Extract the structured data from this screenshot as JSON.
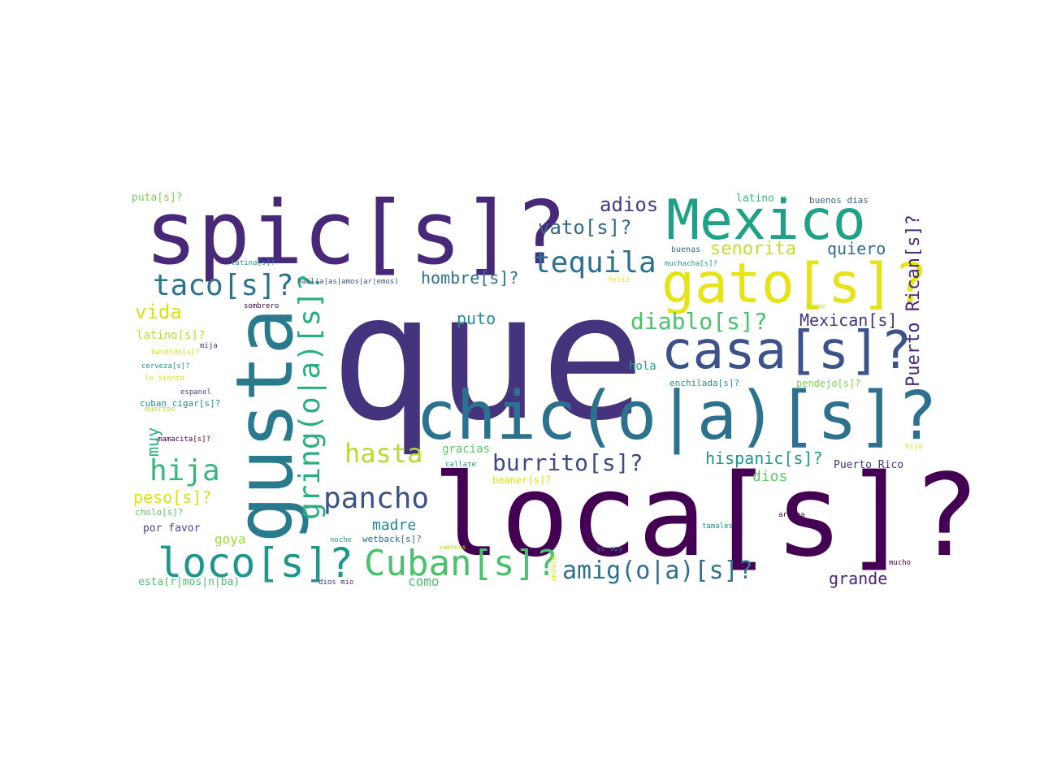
{
  "palette": {
    "dark_purple": "#440154",
    "indigo": "#46337e",
    "slate_blue": "#365c8d",
    "steel_blue": "#277f8e",
    "teal": "#1fa187",
    "green": "#4ac16d",
    "lime": "#a0da39",
    "yellow": "#e6e419"
  },
  "words": [
    {
      "id": "que",
      "text": "que"
    },
    {
      "id": "loca",
      "text": "loca[s]?"
    },
    {
      "id": "spic",
      "text": "spic[s]?"
    },
    {
      "id": "chic",
      "text": "chic(o|a)[s]?"
    },
    {
      "id": "gusta",
      "text": "gusta"
    },
    {
      "id": "mexico",
      "text": "Mexico"
    },
    {
      "id": "gato",
      "text": "gato[s]?"
    },
    {
      "id": "casa",
      "text": "casa[s]?"
    },
    {
      "id": "loco",
      "text": "loco[s]?"
    },
    {
      "id": "cuban",
      "text": "Cuban[s]?"
    },
    {
      "id": "gringo",
      "text": "gring(o|a)[s]?"
    },
    {
      "id": "tequila",
      "text": "tequila"
    },
    {
      "id": "taco",
      "text": "taco[s]?"
    },
    {
      "id": "pancho",
      "text": "pancho"
    },
    {
      "id": "hija",
      "text": "hija"
    },
    {
      "id": "amigo",
      "text": "amig(o|a)[s]?"
    },
    {
      "id": "hasta",
      "text": "hasta"
    },
    {
      "id": "burrito",
      "text": "burrito[s]?"
    },
    {
      "id": "diablo",
      "text": "diablo[s]?"
    },
    {
      "id": "puerto_rican",
      "text": "Puerto Rican[s]?"
    },
    {
      "id": "vato",
      "text": "vato[s]?"
    },
    {
      "id": "adios",
      "text": "adios"
    },
    {
      "id": "vida",
      "text": "vida"
    },
    {
      "id": "senorita",
      "text": "senorita"
    },
    {
      "id": "quiero",
      "text": "quiero"
    },
    {
      "id": "hombre",
      "text": "hombre[s]?"
    },
    {
      "id": "mexican",
      "text": "Mexican[s]"
    },
    {
      "id": "hispanic",
      "text": "hispanic[s]?"
    },
    {
      "id": "peso",
      "text": "peso[s]?"
    },
    {
      "id": "grande",
      "text": "grande"
    },
    {
      "id": "muy",
      "text": "muy"
    },
    {
      "id": "puto",
      "text": "puto"
    },
    {
      "id": "madre",
      "text": "madre"
    },
    {
      "id": "dios",
      "text": "dios"
    },
    {
      "id": "como",
      "text": "como"
    },
    {
      "id": "goya",
      "text": "goya"
    },
    {
      "id": "latino_s",
      "text": "latino[s]?"
    },
    {
      "id": "gracias",
      "text": "gracias"
    },
    {
      "id": "puerto_rico",
      "text": "Puerto Rico"
    },
    {
      "id": "hola",
      "text": "hola"
    },
    {
      "id": "por_favor",
      "text": "por favor"
    },
    {
      "id": "esta",
      "text": "esta(r|mos|n|ba)"
    },
    {
      "id": "puta",
      "text": "puta[s]?"
    },
    {
      "id": "latino",
      "text": "latino"
    },
    {
      "id": "buenos_dias",
      "text": "buenos dias"
    },
    {
      "id": "cuban_cigar",
      "text": "cuban cigar[s]?"
    },
    {
      "id": "enchilada",
      "text": "enchilada[s]?"
    },
    {
      "id": "pendejo",
      "text": "pendejo[s]?"
    },
    {
      "id": "beaner",
      "text": "beaner[s]?"
    },
    {
      "id": "wetback",
      "text": "wetback[s]?"
    },
    {
      "id": "cholo",
      "text": "cholo[s]?"
    },
    {
      "id": "buenas",
      "text": "buenas"
    },
    {
      "id": "latina",
      "text": "latina[s]?"
    },
    {
      "id": "muchacha",
      "text": "muchacha[s]?"
    },
    {
      "id": "habl",
      "text": "habl(a|as|amos|ar|emos)"
    },
    {
      "id": "feliz",
      "text": "feliz"
    },
    {
      "id": "sombrero",
      "text": "sombrero"
    },
    {
      "id": "huevo",
      "text": "huevo"
    },
    {
      "id": "bandido",
      "text": "bandido[s]?"
    },
    {
      "id": "mija",
      "text": "mija"
    },
    {
      "id": "cerveza",
      "text": "cerveza[s]?"
    },
    {
      "id": "lo_siento",
      "text": "lo siento"
    },
    {
      "id": "espanol",
      "text": "espanol"
    },
    {
      "id": "muertos",
      "text": "muertos"
    },
    {
      "id": "mamacita",
      "text": "mamacita[s]?"
    },
    {
      "id": "callate",
      "text": "callate"
    },
    {
      "id": "hijo",
      "text": "hijo"
    },
    {
      "id": "tamales",
      "text": "tamales"
    },
    {
      "id": "arriba",
      "text": "arriba"
    },
    {
      "id": "noche",
      "text": "noche"
    },
    {
      "id": "vamonos",
      "text": "vamonos"
    },
    {
      "id": "andale",
      "text": "andale"
    },
    {
      "id": "yo_soy",
      "text": "yo soy"
    },
    {
      "id": "mucho",
      "text": "mucho"
    },
    {
      "id": "dios_mio",
      "text": "dios mio"
    }
  ]
}
